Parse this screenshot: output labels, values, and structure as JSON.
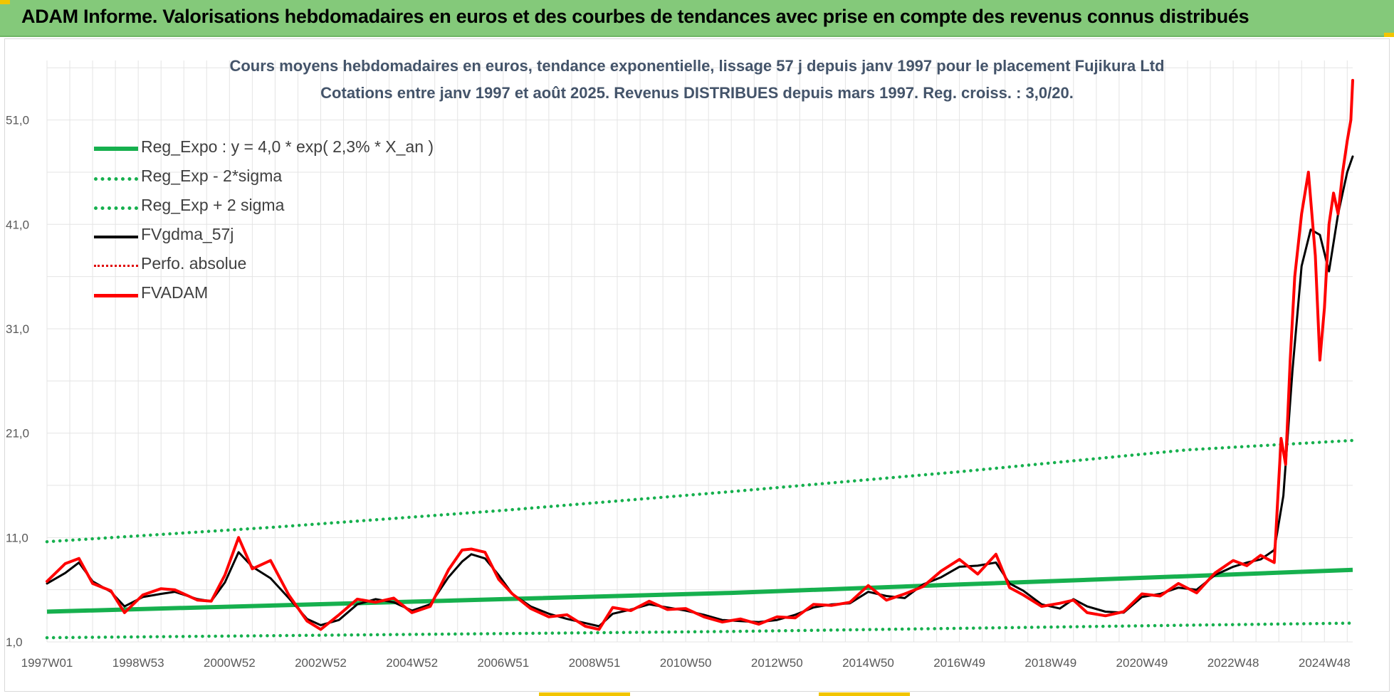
{
  "header": {
    "title": "ADAM Informe. Valorisations hebdomadaires en euros et des courbes de tendances avec prise en compte des revenus connus distribués"
  },
  "chart_data": {
    "type": "line",
    "title": "Cours moyens hebdomadaires en euros, tendance exponentielle, lissage 57 j depuis janv 1997  pour le placement Fujikura Ltd",
    "subtitle": "Cotations entre janv 1997 et août 2025.  Revenus DISTRIBUES depuis mars 1997. Reg. croiss. : 3,0/20.",
    "xlabel": "",
    "ylabel": "",
    "ylim": [
      1,
      56.7
    ],
    "xlim": [
      1997.0,
      2025.62
    ],
    "grid": true,
    "legend_position": "top-left",
    "y_ticks": [
      "1,0",
      "11,0",
      "21,0",
      "31,0",
      "41,0",
      "51,0"
    ],
    "x_ticks": [
      {
        "label": "1997W01",
        "x": 1997.0
      },
      {
        "label": "1998W53",
        "x": 1999.0
      },
      {
        "label": "2000W52",
        "x": 2001.0
      },
      {
        "label": "2002W52",
        "x": 2003.0
      },
      {
        "label": "2004W52",
        "x": 2005.0
      },
      {
        "label": "2006W51",
        "x": 2007.0
      },
      {
        "label": "2008W51",
        "x": 2009.0
      },
      {
        "label": "2010W50",
        "x": 2011.0
      },
      {
        "label": "2012W50",
        "x": 2013.0
      },
      {
        "label": "2014W50",
        "x": 2015.0
      },
      {
        "label": "2016W49",
        "x": 2017.0
      },
      {
        "label": "2018W49",
        "x": 2019.0
      },
      {
        "label": "2020W49",
        "x": 2021.0
      },
      {
        "label": "2022W48",
        "x": 2023.0
      },
      {
        "label": "2024W48",
        "x": 2025.0
      }
    ],
    "series": [
      {
        "name": "Reg_Expo : y = 4,0 * exp( 2,3% *  X_an )",
        "color": "#16b04e",
        "style": "solid",
        "x": [
          1997.0,
          2002.0,
          2007.0,
          2012.0,
          2017.0,
          2022.0,
          2025.62
        ],
        "y": [
          3.9,
          4.5,
          5.1,
          5.7,
          6.5,
          7.3,
          7.9
        ]
      },
      {
        "name": "Reg_Exp - 2*sigma",
        "color": "#16b04e",
        "style": "dotted",
        "x": [
          1997.0,
          2002.0,
          2007.0,
          2012.0,
          2017.0,
          2022.0,
          2025.62
        ],
        "y": [
          1.4,
          1.6,
          1.8,
          2.0,
          2.3,
          2.6,
          2.8
        ]
      },
      {
        "name": "Reg_Exp + 2 sigma",
        "color": "#16b04e",
        "style": "dotted",
        "x": [
          1997.0,
          2002.0,
          2007.0,
          2012.0,
          2017.0,
          2022.0,
          2025.62
        ],
        "y": [
          10.6,
          12.0,
          13.6,
          15.4,
          17.3,
          19.4,
          20.3
        ]
      },
      {
        "name": "FVgdma_57j",
        "color": "#000000",
        "style": "solid",
        "x": [
          1997.0,
          1997.4,
          1997.7,
          1998.0,
          1998.4,
          1998.7,
          1999.1,
          1999.5,
          1999.8,
          2000.3,
          2000.6,
          2000.9,
          2001.2,
          2001.5,
          2001.9,
          2002.3,
          2002.7,
          2003.0,
          2003.4,
          2003.8,
          2004.2,
          2004.6,
          2005.0,
          2005.4,
          2005.8,
          2006.1,
          2006.3,
          2006.6,
          2006.9,
          2007.2,
          2007.6,
          2008.0,
          2008.4,
          2008.8,
          2009.1,
          2009.4,
          2009.8,
          2010.2,
          2010.6,
          2011.0,
          2011.4,
          2011.8,
          2012.2,
          2012.6,
          2013.0,
          2013.4,
          2013.8,
          2014.2,
          2014.6,
          2015.0,
          2015.4,
          2015.8,
          2016.2,
          2016.6,
          2017.0,
          2017.4,
          2017.8,
          2018.1,
          2018.4,
          2018.8,
          2019.2,
          2019.5,
          2019.8,
          2020.2,
          2020.6,
          2021.0,
          2021.4,
          2021.8,
          2022.2,
          2022.6,
          2023.0,
          2023.3,
          2023.6,
          2023.9,
          2024.1,
          2024.3,
          2024.5,
          2024.7,
          2024.9,
          2025.1,
          2025.3,
          2025.5,
          2025.62
        ],
        "y": [
          6.6,
          7.6,
          8.6,
          6.8,
          5.8,
          4.4,
          5.3,
          5.6,
          5.8,
          5.1,
          4.9,
          6.7,
          9.6,
          8.2,
          7.1,
          5.2,
          3.2,
          2.6,
          3.1,
          4.6,
          5.1,
          4.8,
          4.0,
          4.6,
          7.2,
          8.7,
          9.4,
          9.0,
          7.4,
          5.6,
          4.4,
          3.7,
          3.2,
          2.8,
          2.5,
          3.7,
          4.1,
          4.6,
          4.3,
          4.0,
          3.6,
          3.1,
          3.0,
          2.9,
          3.1,
          3.6,
          4.3,
          4.6,
          4.7,
          5.8,
          5.4,
          5.2,
          6.5,
          7.2,
          8.2,
          8.3,
          8.6,
          6.6,
          5.9,
          4.6,
          4.2,
          5.1,
          4.4,
          3.9,
          3.8,
          5.3,
          5.6,
          6.2,
          6.0,
          7.4,
          8.2,
          8.6,
          8.9,
          9.8,
          15.0,
          27.0,
          37.0,
          40.5,
          40.0,
          36.5,
          42.0,
          46.0,
          47.5
        ]
      },
      {
        "name": "Perfo. absolue",
        "color": "#e00000",
        "style": "dotted",
        "x": [],
        "y": []
      },
      {
        "name": "FVADAM",
        "color": "#ff0000",
        "style": "solid",
        "x": [
          1997.0,
          1997.4,
          1997.7,
          1998.0,
          1998.4,
          1998.7,
          1999.1,
          1999.5,
          1999.8,
          2000.3,
          2000.6,
          2000.9,
          2001.2,
          2001.5,
          2001.9,
          2002.3,
          2002.7,
          2003.0,
          2003.4,
          2003.8,
          2004.2,
          2004.6,
          2005.0,
          2005.4,
          2005.8,
          2006.1,
          2006.3,
          2006.6,
          2006.9,
          2007.2,
          2007.6,
          2008.0,
          2008.4,
          2008.8,
          2009.1,
          2009.4,
          2009.8,
          2010.2,
          2010.6,
          2011.0,
          2011.4,
          2011.8,
          2012.2,
          2012.6,
          2013.0,
          2013.4,
          2013.8,
          2014.2,
          2014.6,
          2015.0,
          2015.4,
          2015.8,
          2016.2,
          2016.6,
          2017.0,
          2017.4,
          2017.8,
          2018.1,
          2018.4,
          2018.8,
          2019.2,
          2019.5,
          2019.8,
          2020.2,
          2020.6,
          2021.0,
          2021.4,
          2021.8,
          2022.2,
          2022.6,
          2023.0,
          2023.3,
          2023.6,
          2023.9,
          2024.05,
          2024.15,
          2024.25,
          2024.35,
          2024.5,
          2024.65,
          2024.8,
          2024.9,
          2025.0,
          2025.1,
          2025.2,
          2025.3,
          2025.4,
          2025.5,
          2025.58,
          2025.62
        ],
        "y": [
          6.8,
          8.5,
          9.0,
          6.6,
          5.9,
          3.8,
          5.5,
          6.1,
          6.0,
          5.0,
          4.9,
          7.4,
          11.0,
          8.0,
          8.8,
          5.5,
          3.0,
          2.2,
          3.6,
          5.1,
          4.8,
          5.2,
          3.8,
          4.4,
          7.9,
          9.8,
          9.9,
          9.6,
          7.0,
          5.6,
          4.2,
          3.4,
          3.6,
          2.5,
          2.2,
          4.3,
          4.0,
          4.9,
          4.1,
          4.2,
          3.4,
          2.9,
          3.2,
          2.7,
          3.4,
          3.3,
          4.6,
          4.5,
          4.8,
          6.4,
          5.0,
          5.6,
          6.3,
          7.8,
          8.9,
          7.5,
          9.4,
          6.2,
          5.5,
          4.4,
          4.7,
          5.0,
          3.8,
          3.5,
          3.9,
          5.6,
          5.4,
          6.6,
          5.7,
          7.6,
          8.8,
          8.3,
          9.3,
          8.6,
          20.5,
          18.0,
          28.0,
          36.0,
          42.0,
          46.0,
          38.0,
          28.0,
          33.0,
          41.0,
          44.0,
          42.0,
          46.0,
          49.0,
          51.0,
          54.8
        ]
      }
    ]
  }
}
